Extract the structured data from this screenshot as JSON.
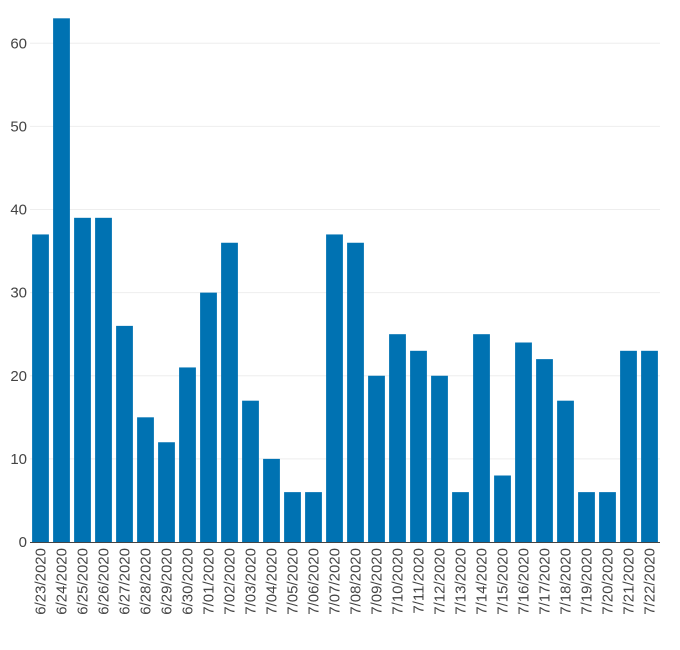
{
  "chart_data": {
    "type": "bar",
    "title": "",
    "xlabel": "",
    "ylabel": "",
    "ylim": [
      0,
      64
    ],
    "yticks": [
      0,
      10,
      20,
      30,
      40,
      50,
      60
    ],
    "grid": true,
    "bar_color": "#0072b2",
    "categories": [
      "6/23/2020",
      "6/24/2020",
      "6/25/2020",
      "6/26/2020",
      "6/27/2020",
      "6/28/2020",
      "6/29/2020",
      "6/30/2020",
      "7/01/2020",
      "7/02/2020",
      "7/03/2020",
      "7/04/2020",
      "7/05/2020",
      "7/06/2020",
      "7/07/2020",
      "7/08/2020",
      "7/09/2020",
      "7/10/2020",
      "7/11/2020",
      "7/12/2020",
      "7/13/2020",
      "7/14/2020",
      "7/15/2020",
      "7/16/2020",
      "7/17/2020",
      "7/18/2020",
      "7/19/2020",
      "7/20/2020",
      "7/21/2020",
      "7/22/2020"
    ],
    "values": [
      37,
      63,
      39,
      39,
      26,
      15,
      12,
      21,
      30,
      36,
      17,
      10,
      6,
      6,
      37,
      36,
      20,
      25,
      23,
      20,
      6,
      25,
      8,
      24,
      22,
      17,
      6,
      6,
      23,
      23
    ]
  }
}
